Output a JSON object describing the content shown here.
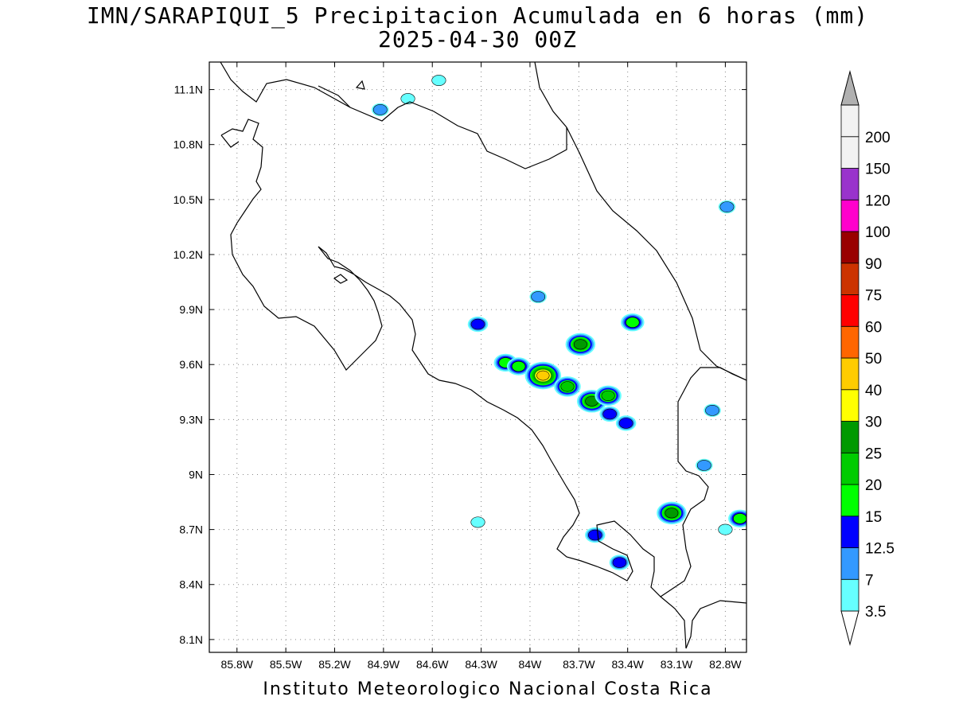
{
  "header": {
    "title": "IMN/SARAPIQUI_5 Precipitacion Acumulada en 6 horas (mm)",
    "subtitle": "2025-04-30 00Z"
  },
  "footer": {
    "credit": "Instituto Meteorologico Nacional Costa Rica"
  },
  "map": {
    "lon_range": [
      -85.97,
      -82.67
    ],
    "lat_range": [
      8.03,
      11.25
    ],
    "x_ticks": [
      "85.8W",
      "85.5W",
      "85.2W",
      "84.9W",
      "84.6W",
      "84.3W",
      "84W",
      "83.7W",
      "83.4W",
      "83.1W",
      "82.8W"
    ],
    "x_tick_values": [
      -85.8,
      -85.5,
      -85.2,
      -84.9,
      -84.6,
      -84.3,
      -84.0,
      -83.7,
      -83.4,
      -83.1,
      -82.8
    ],
    "y_ticks": [
      "11.1N",
      "10.8N",
      "10.5N",
      "10.2N",
      "9.9N",
      "9.6N",
      "9.3N",
      "9N",
      "8.7N",
      "8.4N",
      "8.1N"
    ],
    "y_tick_values": [
      11.1,
      10.8,
      10.5,
      10.2,
      9.9,
      9.6,
      9.3,
      9.0,
      8.7,
      8.4,
      8.1
    ],
    "grid": "dotted"
  },
  "colorbar": {
    "levels": [
      "3.5",
      "7",
      "12.5",
      "15",
      "20",
      "25",
      "30",
      "40",
      "50",
      "60",
      "75",
      "90",
      "100",
      "120",
      "150",
      "200"
    ],
    "colors": [
      "#66ffff",
      "#3399ff",
      "#0000ff",
      "#00ff00",
      "#00cc00",
      "#009900",
      "#ffff00",
      "#ffcc00",
      "#ff6600",
      "#ff0000",
      "#cc3300",
      "#990000",
      "#ff00cc",
      "#9933cc",
      "#f2f2f2",
      "#b0b0b0"
    ]
  },
  "precip_cells": [
    {
      "lon": -84.92,
      "lat": 10.99,
      "max": 7
    },
    {
      "lon": -84.75,
      "lat": 11.05,
      "max": 3.5
    },
    {
      "lon": -84.56,
      "lat": 11.15,
      "max": 3.5
    },
    {
      "lon": -83.95,
      "lat": 9.97,
      "max": 7
    },
    {
      "lon": -84.32,
      "lat": 9.82,
      "max": 12.5
    },
    {
      "lon": -83.69,
      "lat": 9.71,
      "max": 25
    },
    {
      "lon": -83.37,
      "lat": 9.83,
      "max": 15
    },
    {
      "lon": -84.15,
      "lat": 9.61,
      "max": 15
    },
    {
      "lon": -84.07,
      "lat": 9.59,
      "max": 15
    },
    {
      "lon": -83.92,
      "lat": 9.54,
      "max": 40
    },
    {
      "lon": -83.77,
      "lat": 9.48,
      "max": 20
    },
    {
      "lon": -83.62,
      "lat": 9.4,
      "max": 25
    },
    {
      "lon": -83.52,
      "lat": 9.43,
      "max": 20
    },
    {
      "lon": -83.51,
      "lat": 9.33,
      "max": 12.5
    },
    {
      "lon": -83.41,
      "lat": 9.28,
      "max": 12.5
    },
    {
      "lon": -83.13,
      "lat": 8.79,
      "max": 25
    },
    {
      "lon": -82.71,
      "lat": 8.76,
      "max": 15
    },
    {
      "lon": -83.6,
      "lat": 8.67,
      "max": 12.5
    },
    {
      "lon": -83.45,
      "lat": 8.52,
      "max": 12.5
    },
    {
      "lon": -84.32,
      "lat": 8.74,
      "max": 3.5
    },
    {
      "lon": -82.79,
      "lat": 10.46,
      "max": 7
    },
    {
      "lon": -82.93,
      "lat": 9.05,
      "max": 7
    },
    {
      "lon": -82.88,
      "lat": 9.35,
      "max": 7
    },
    {
      "lon": -82.8,
      "lat": 8.7,
      "max": 3.5
    }
  ]
}
